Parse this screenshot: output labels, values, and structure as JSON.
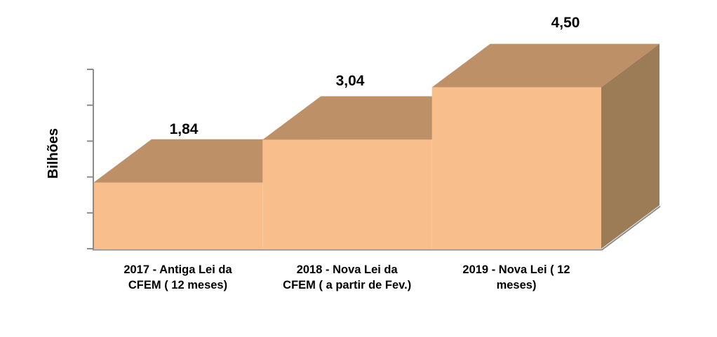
{
  "chart_data": {
    "type": "area",
    "subtype": "3d-step-area",
    "title": "",
    "xlabel": "",
    "ylabel": "Bilhões",
    "ylim": [
      0,
      5
    ],
    "tick_step": 1,
    "grid": false,
    "legend": "none",
    "categories": [
      "2017 - Antiga Lei da CFEM ( 12 meses)",
      "2018 - Nova Lei da CFEM ( a partir de Fev.)",
      "2019 - Nova Lei ( 12 meses)"
    ],
    "categories_wrapped": [
      [
        "2017 - Antiga Lei da",
        "CFEM ( 12 meses)"
      ],
      [
        "2018 - Nova Lei da",
        "CFEM ( a partir de Fev.)"
      ],
      [
        "2019 - Nova Lei ( 12",
        "meses)"
      ]
    ],
    "values": [
      1.84,
      3.04,
      4.5
    ],
    "value_labels": [
      "1,84",
      "3,04",
      "4,50"
    ],
    "colors": {
      "area_front": "#F8BF8D",
      "area_top": "#BE9068",
      "area_side": "#9C7B57",
      "axis": "#8C8C8C",
      "label_text": "#000000"
    }
  }
}
